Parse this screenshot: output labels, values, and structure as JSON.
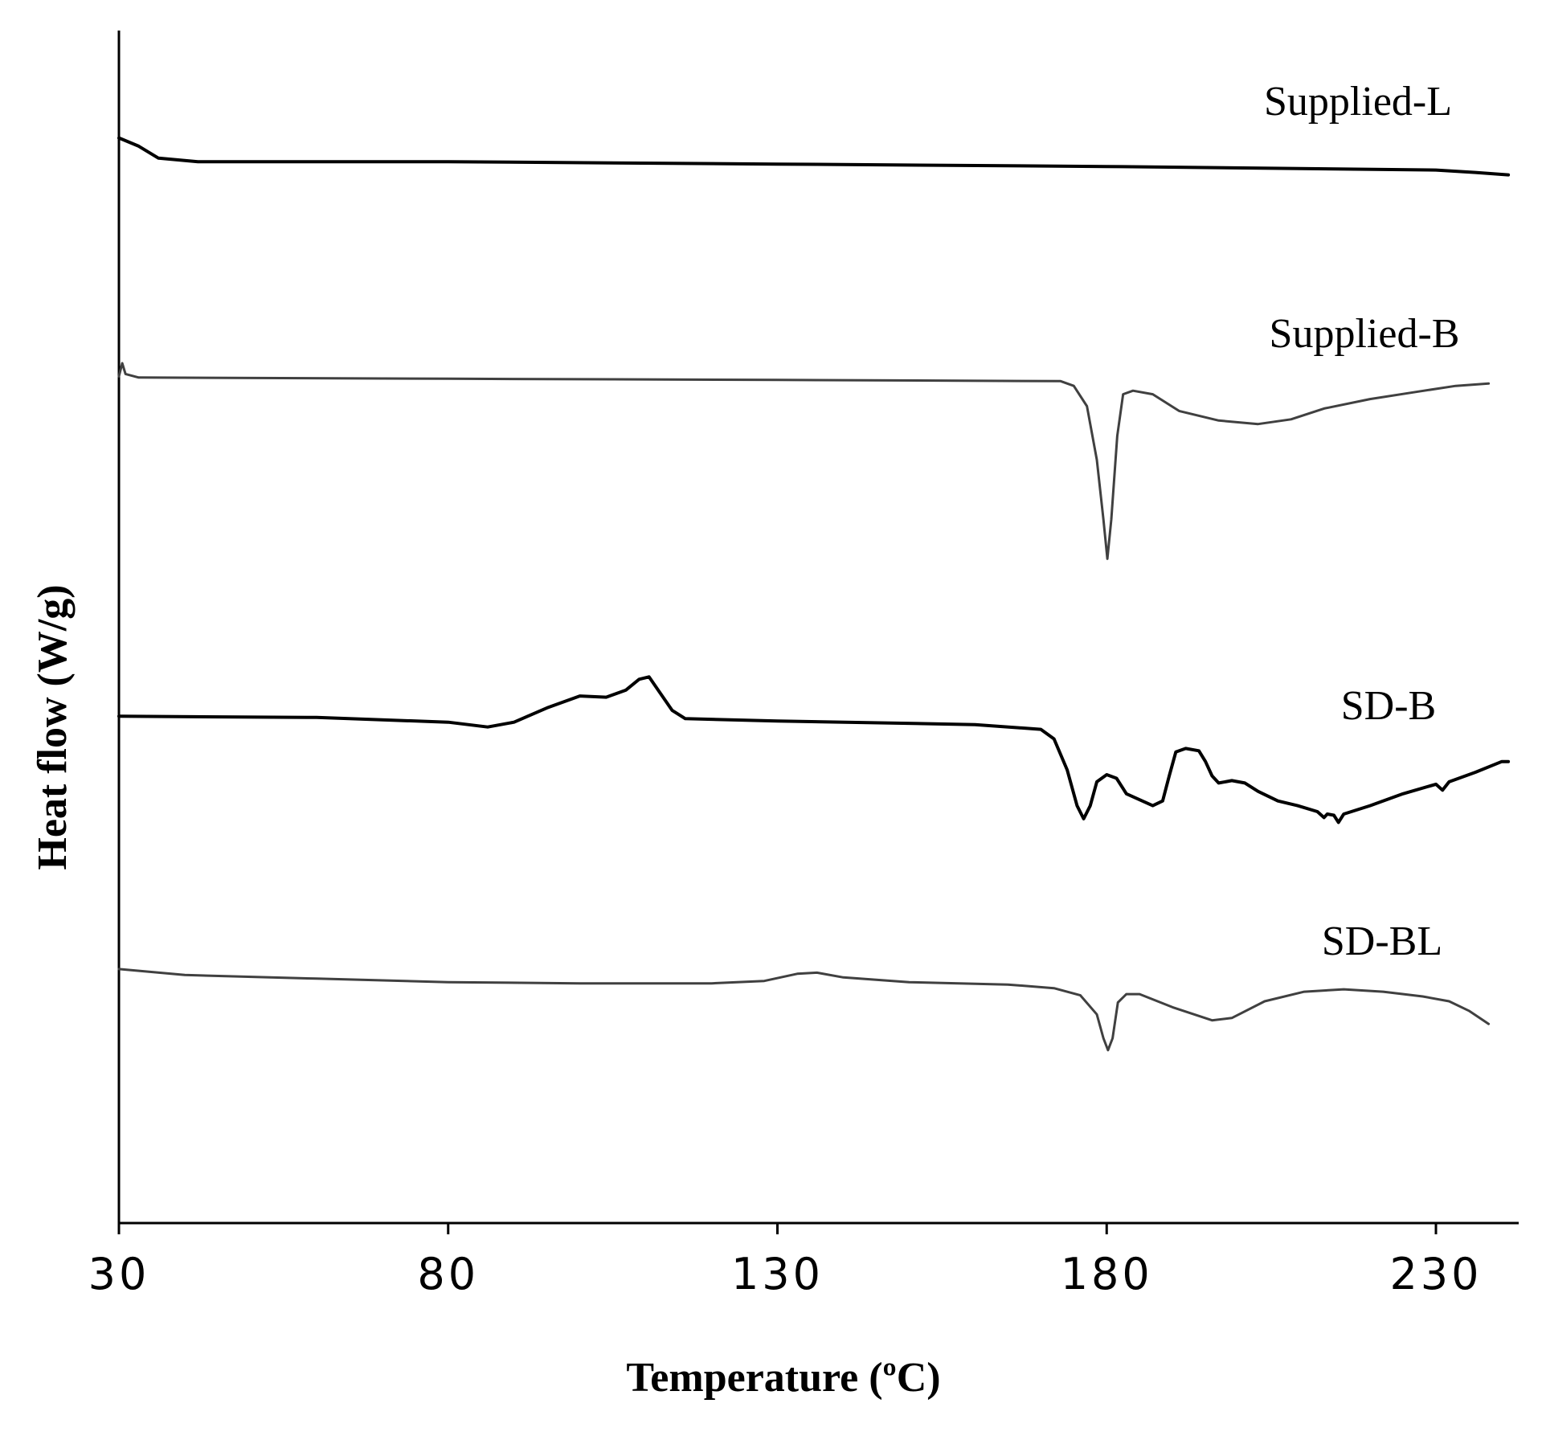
{
  "chart_data": {
    "type": "line",
    "title": "",
    "xlabel": "Temperature (ºC)",
    "ylabel": "Heat flow (W/g)",
    "xlim": [
      30,
      241
    ],
    "ylim": [
      0,
      100
    ],
    "xticks": [
      30,
      80,
      130,
      180,
      230
    ],
    "grid": false,
    "legend": "inline labels right of each curve",
    "series": [
      {
        "name": "Supplied-L",
        "color": "#000000",
        "points": [
          [
            30,
            91.0
          ],
          [
            33,
            90.3
          ],
          [
            36,
            89.3
          ],
          [
            42,
            89.0
          ],
          [
            80,
            89.0
          ],
          [
            130,
            88.8
          ],
          [
            180,
            88.6
          ],
          [
            230,
            88.3
          ],
          [
            236,
            88.1
          ],
          [
            241,
            87.9
          ]
        ]
      },
      {
        "name": "Supplied-B",
        "color": "#404040",
        "points": [
          [
            30,
            71.0
          ],
          [
            30.5,
            72.1
          ],
          [
            31,
            71.2
          ],
          [
            33,
            70.9
          ],
          [
            80,
            70.8
          ],
          [
            130,
            70.7
          ],
          [
            173,
            70.6
          ],
          [
            175,
            70.2
          ],
          [
            177,
            68.5
          ],
          [
            178.5,
            64.0
          ],
          [
            179.5,
            59.0
          ],
          [
            180.1,
            55.7
          ],
          [
            180.7,
            59.0
          ],
          [
            181.6,
            66.0
          ],
          [
            182.5,
            69.5
          ],
          [
            184,
            69.8
          ],
          [
            187,
            69.5
          ],
          [
            191,
            68.1
          ],
          [
            197,
            67.3
          ],
          [
            203,
            67.0
          ],
          [
            208,
            67.4
          ],
          [
            213,
            68.3
          ],
          [
            220,
            69.1
          ],
          [
            227,
            69.7
          ],
          [
            233,
            70.2
          ],
          [
            238,
            70.4
          ]
        ]
      },
      {
        "name": "SD-B",
        "color": "#000000",
        "points": [
          [
            30,
            42.5
          ],
          [
            60,
            42.4
          ],
          [
            80,
            42.0
          ],
          [
            86,
            41.6
          ],
          [
            90,
            42.0
          ],
          [
            95,
            43.2
          ],
          [
            100,
            44.2
          ],
          [
            104,
            44.1
          ],
          [
            107,
            44.7
          ],
          [
            109,
            45.6
          ],
          [
            110.5,
            45.8
          ],
          [
            112,
            44.6
          ],
          [
            114,
            43.0
          ],
          [
            116,
            42.3
          ],
          [
            130,
            42.1
          ],
          [
            160,
            41.8
          ],
          [
            170,
            41.4
          ],
          [
            172,
            40.6
          ],
          [
            174,
            38.0
          ],
          [
            175.5,
            35.0
          ],
          [
            176.5,
            33.9
          ],
          [
            177.5,
            35.0
          ],
          [
            178.5,
            37.0
          ],
          [
            180,
            37.6
          ],
          [
            181.5,
            37.3
          ],
          [
            183,
            36.0
          ],
          [
            185,
            35.5
          ],
          [
            187,
            35.0
          ],
          [
            188.5,
            35.4
          ],
          [
            189.5,
            37.5
          ],
          [
            190.5,
            39.5
          ],
          [
            192,
            39.8
          ],
          [
            194,
            39.6
          ],
          [
            195,
            38.7
          ],
          [
            196,
            37.5
          ],
          [
            197,
            36.9
          ],
          [
            199,
            37.1
          ],
          [
            201,
            36.9
          ],
          [
            203,
            36.2
          ],
          [
            206,
            35.4
          ],
          [
            209,
            35.0
          ],
          [
            212,
            34.5
          ],
          [
            213,
            34.0
          ],
          [
            213.5,
            34.3
          ],
          [
            214.5,
            34.2
          ],
          [
            215.2,
            33.6
          ],
          [
            216,
            34.3
          ],
          [
            220,
            35.0
          ],
          [
            225,
            36.0
          ],
          [
            230,
            36.8
          ],
          [
            231,
            36.3
          ],
          [
            232,
            37.0
          ],
          [
            236,
            37.8
          ],
          [
            240,
            38.7
          ],
          [
            241,
            38.7
          ]
        ]
      },
      {
        "name": "SD-BL",
        "color": "#404040",
        "points": [
          [
            30,
            21.3
          ],
          [
            40,
            20.8
          ],
          [
            60,
            20.5
          ],
          [
            80,
            20.2
          ],
          [
            100,
            20.1
          ],
          [
            120,
            20.1
          ],
          [
            128,
            20.3
          ],
          [
            133,
            20.9
          ],
          [
            136,
            21.0
          ],
          [
            140,
            20.6
          ],
          [
            150,
            20.2
          ],
          [
            165,
            20.0
          ],
          [
            172,
            19.7
          ],
          [
            176,
            19.1
          ],
          [
            178.5,
            17.5
          ],
          [
            179.5,
            15.5
          ],
          [
            180.2,
            14.5
          ],
          [
            180.9,
            15.5
          ],
          [
            181.7,
            18.5
          ],
          [
            183,
            19.2
          ],
          [
            185,
            19.2
          ],
          [
            190,
            18.1
          ],
          [
            196,
            17.0
          ],
          [
            199,
            17.2
          ],
          [
            204,
            18.6
          ],
          [
            210,
            19.4
          ],
          [
            216,
            19.6
          ],
          [
            222,
            19.4
          ],
          [
            228,
            19.0
          ],
          [
            232,
            18.6
          ],
          [
            235,
            17.8
          ],
          [
            238,
            16.7
          ]
        ]
      }
    ]
  }
}
